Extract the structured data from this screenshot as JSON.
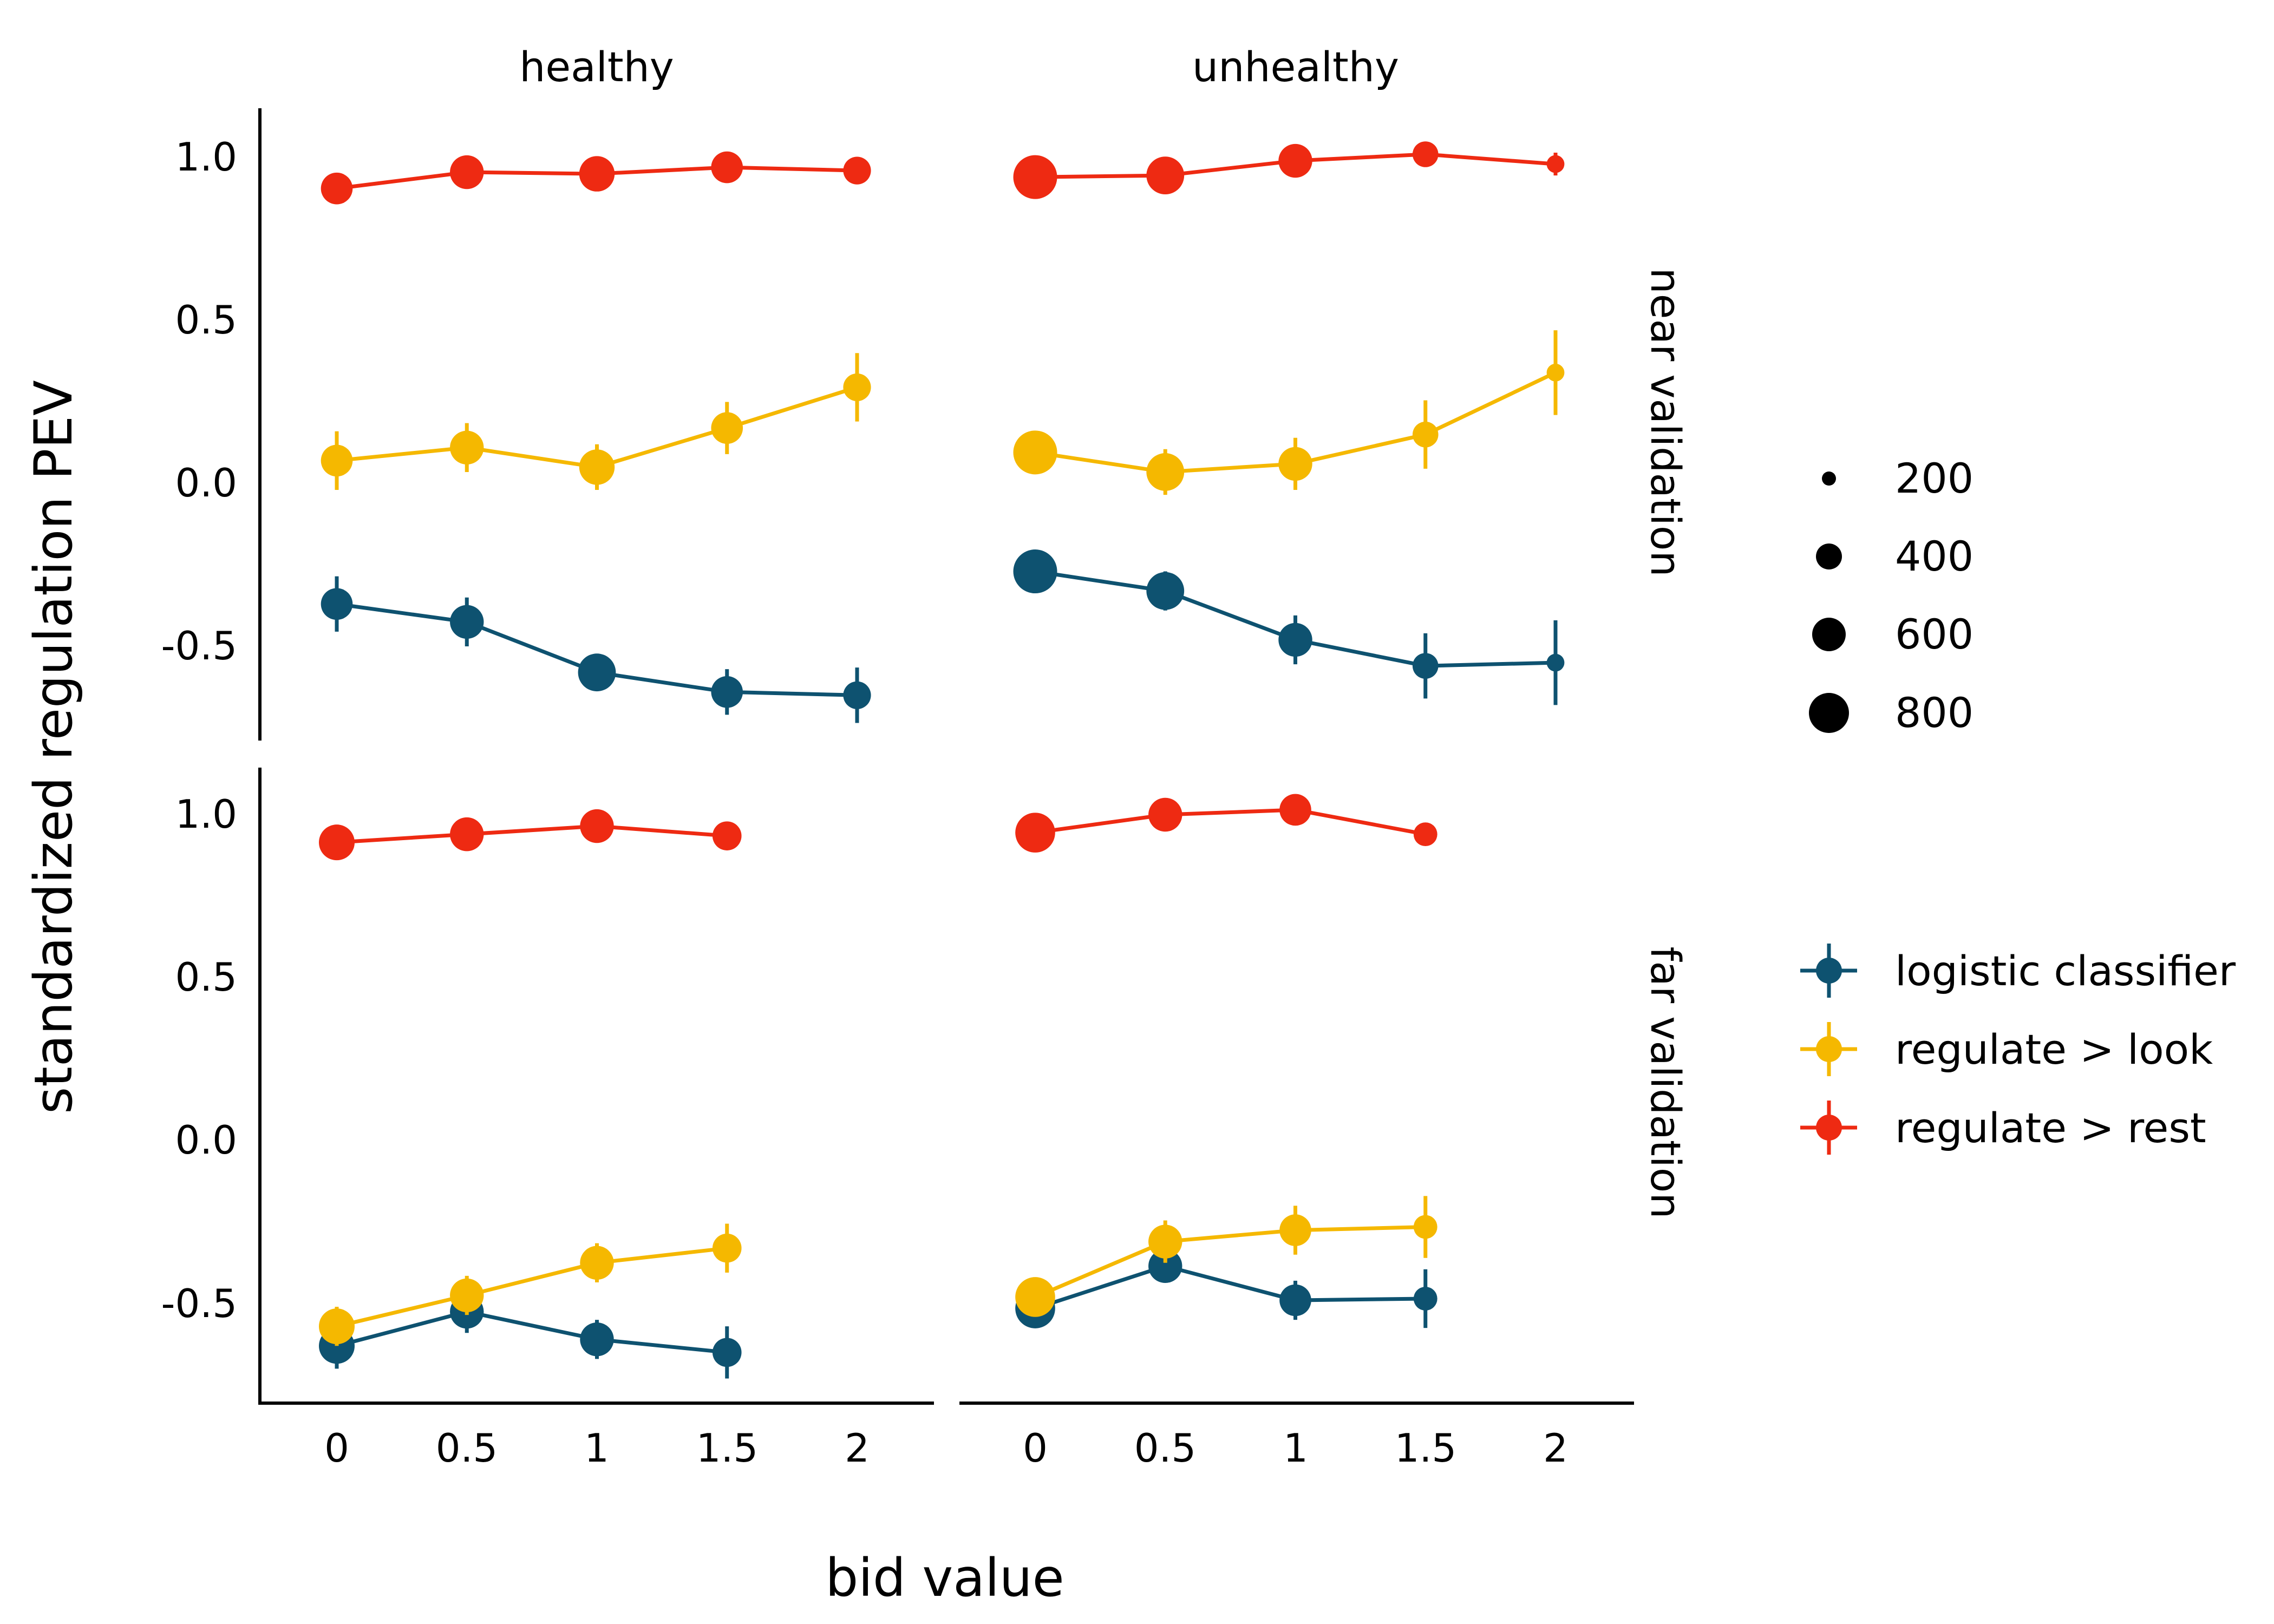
{
  "chart_data": {
    "type": "line",
    "xlabel": "bid value",
    "ylabel": "standardized regulation PEV",
    "x_ticks": [
      0,
      0.5,
      1,
      1.5,
      2
    ],
    "x_tick_labels": [
      "0",
      "0.5",
      "1",
      "1.5",
      "2"
    ],
    "y_ticks": [
      -0.5,
      0.0,
      0.5,
      1.0
    ],
    "y_tick_labels": [
      "-0.5",
      "0.0",
      "0.5",
      "1.0"
    ],
    "columns": [
      "healthy",
      "unhealthy"
    ],
    "rows": [
      "near validation",
      "far validation"
    ],
    "size_legend": {
      "values": [
        200,
        400,
        600,
        800
      ],
      "labels": [
        "200",
        "400",
        "600",
        "800"
      ]
    },
    "color_legend": [
      {
        "label": "logistic classifier",
        "color": "#0e5270"
      },
      {
        "label": "regulate > look",
        "color": "#f5b800"
      },
      {
        "label": "regulate > rest",
        "color": "#ee2a12"
      }
    ],
    "series_colors": {
      "logistic": "#0e5270",
      "look": "#f5b800",
      "rest": "#ee2a12"
    },
    "panels": [
      {
        "row": "near validation",
        "col": "healthy",
        "series": [
          {
            "key": "rest",
            "x": [
              0,
              0.5,
              1,
              1.5,
              2
            ],
            "y": [
              0.9,
              0.95,
              0.945,
              0.965,
              0.955
            ],
            "err": [
              0.02,
              0.02,
              0.02,
              0.02,
              0.02
            ],
            "n": [
              550,
              600,
              640,
              550,
              450
            ]
          },
          {
            "key": "look",
            "x": [
              0,
              0.5,
              1,
              1.5,
              2
            ],
            "y": [
              0.065,
              0.105,
              0.045,
              0.165,
              0.29
            ],
            "err": [
              0.09,
              0.075,
              0.07,
              0.08,
              0.105
            ],
            "n": [
              550,
              600,
              640,
              550,
              450
            ]
          },
          {
            "key": "logistic",
            "x": [
              0,
              0.5,
              1,
              1.5,
              2
            ],
            "y": [
              -0.375,
              -0.43,
              -0.585,
              -0.645,
              -0.655
            ],
            "err": [
              0.085,
              0.075,
              0.05,
              0.07,
              0.085
            ],
            "n": [
              550,
              600,
              700,
              550,
              450
            ]
          }
        ]
      },
      {
        "row": "near validation",
        "col": "unhealthy",
        "series": [
          {
            "key": "rest",
            "x": [
              0,
              0.5,
              1,
              1.5,
              2
            ],
            "y": [
              0.935,
              0.94,
              0.985,
              1.005,
              0.975
            ],
            "err": [
              0.02,
              0.02,
              0.02,
              0.02,
              0.035
            ],
            "n": [
              850,
              700,
              600,
              400,
              200
            ]
          },
          {
            "key": "look",
            "x": [
              0,
              0.5,
              1,
              1.5,
              2
            ],
            "y": [
              0.09,
              0.03,
              0.055,
              0.145,
              0.335
            ],
            "err": [
              0.05,
              0.07,
              0.08,
              0.105,
              0.13
            ],
            "n": [
              850,
              700,
              600,
              400,
              200
            ]
          },
          {
            "key": "logistic",
            "x": [
              0,
              0.5,
              1,
              1.5,
              2
            ],
            "y": [
              -0.275,
              -0.335,
              -0.485,
              -0.565,
              -0.555
            ],
            "err": [
              0.04,
              0.06,
              0.075,
              0.1,
              0.13
            ],
            "n": [
              850,
              700,
              600,
              400,
              200
            ]
          }
        ]
      },
      {
        "row": "far validation",
        "col": "healthy",
        "series": [
          {
            "key": "rest",
            "x": [
              0,
              0.5,
              1,
              1.5
            ],
            "y": [
              0.91,
              0.935,
              0.96,
              0.93
            ],
            "err": [
              0.02,
              0.02,
              0.02,
              0.02
            ],
            "n": [
              650,
              600,
              600,
              480
            ]
          },
          {
            "key": "look",
            "x": [
              0,
              0.5,
              1,
              1.5
            ],
            "y": [
              -0.575,
              -0.48,
              -0.38,
              -0.335
            ],
            "err": [
              0.06,
              0.06,
              0.06,
              0.075
            ],
            "n": [
              650,
              600,
              600,
              480
            ]
          },
          {
            "key": "logistic",
            "x": [
              0,
              0.5,
              1,
              1.5
            ],
            "y": [
              -0.635,
              -0.53,
              -0.615,
              -0.655
            ],
            "err": [
              0.07,
              0.065,
              0.06,
              0.08
            ],
            "n": [
              650,
              600,
              600,
              480
            ]
          }
        ]
      },
      {
        "row": "far validation",
        "col": "unhealthy",
        "series": [
          {
            "key": "rest",
            "x": [
              0,
              0.5,
              1,
              1.5
            ],
            "y": [
              0.94,
              0.995,
              1.01,
              0.935
            ],
            "err": [
              0.02,
              0.02,
              0.02,
              0.02
            ],
            "n": [
              750,
              600,
              550,
              350
            ]
          },
          {
            "key": "look",
            "x": [
              0,
              0.5,
              1,
              1.5
            ],
            "y": [
              -0.485,
              -0.315,
              -0.28,
              -0.27
            ],
            "err": [
              0.04,
              0.065,
              0.075,
              0.095
            ],
            "n": [
              750,
              600,
              550,
              350
            ]
          },
          {
            "key": "logistic",
            "x": [
              0,
              0.5,
              1,
              1.5
            ],
            "y": [
              -0.52,
              -0.39,
              -0.495,
              -0.49
            ],
            "err": [
              0.04,
              0.05,
              0.06,
              0.09
            ],
            "n": [
              750,
              600,
              550,
              350
            ]
          }
        ]
      }
    ]
  }
}
